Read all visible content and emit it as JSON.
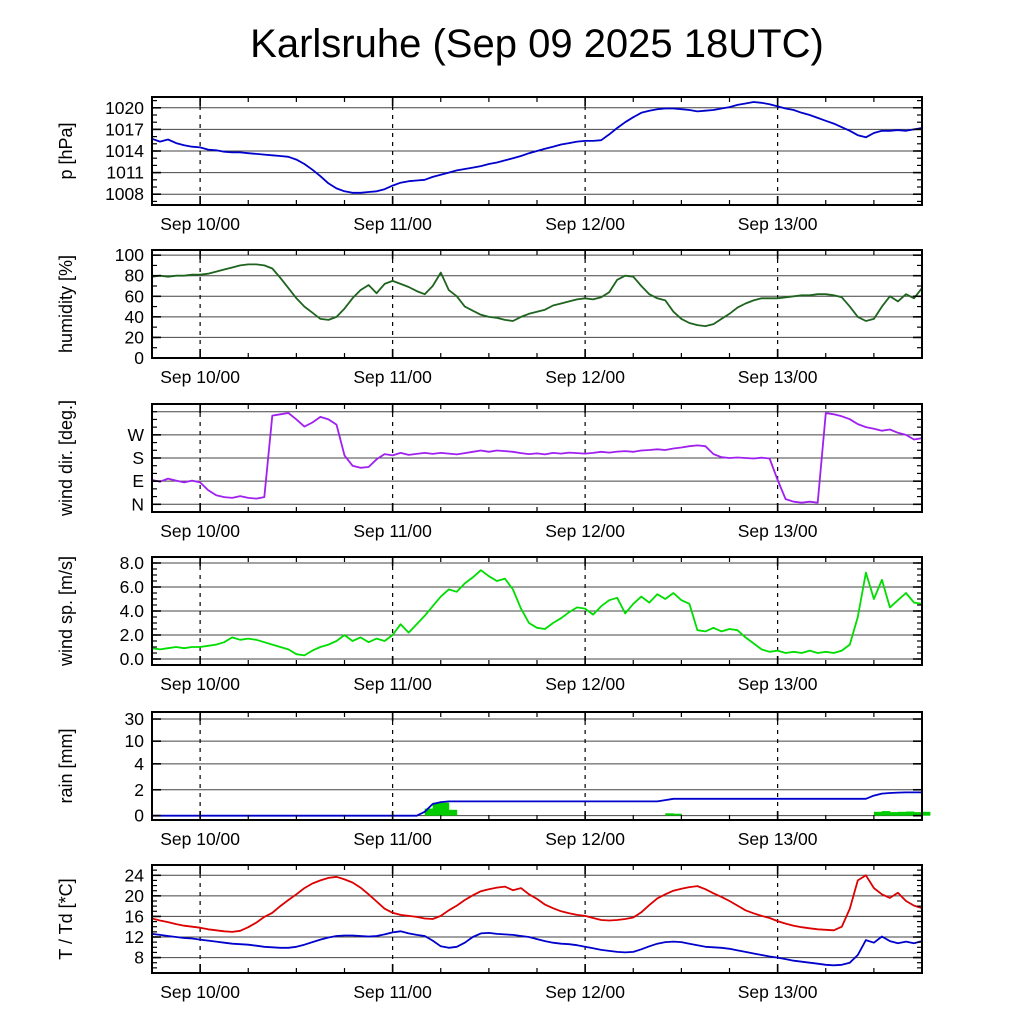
{
  "title": "Karlsruhe (Sep 09 2025 18UTC)",
  "x_axis": {
    "hours_total": 96,
    "step_hours": 1,
    "minor_tick_step_hours": 6,
    "ticks": [
      {
        "hour": 6,
        "label": "Sep 10/00"
      },
      {
        "hour": 30,
        "label": "Sep 11/00"
      },
      {
        "hour": 54,
        "label": "Sep 12/00"
      },
      {
        "hour": 78,
        "label": "Sep 13/00"
      }
    ]
  },
  "colors": {
    "pressure": "#0000cd",
    "humidity": "#1e641e",
    "wind_dir": "#a020f0",
    "wind_speed": "#00dd00",
    "rain_line": "#0000cd",
    "rain_bar": "#00cc00",
    "temperature": "#dd0000",
    "dewpoint": "#0000cd",
    "gridline": "#444444",
    "axis": "#000000"
  },
  "chart_data": [
    {
      "id": "pressure",
      "type": "line",
      "ylabel": "p [hPa]",
      "ytick_values": [
        1008,
        1011,
        1014,
        1017,
        1020
      ],
      "ytick_labels": [
        "1008",
        "1011",
        "1014",
        "1017",
        "1020"
      ],
      "ydomain": [
        1006.5,
        1021.5
      ],
      "minor_step": 1,
      "series": [
        {
          "name": "pressure",
          "color": "pressure",
          "values": [
            1015.7,
            1015.3,
            1015.6,
            1015.1,
            1014.8,
            1014.6,
            1014.5,
            1014.2,
            1014.1,
            1013.9,
            1013.8,
            1013.8,
            1013.7,
            1013.6,
            1013.5,
            1013.4,
            1013.3,
            1013.2,
            1012.8,
            1012.2,
            1011.4,
            1010.5,
            1009.5,
            1008.8,
            1008.4,
            1008.2,
            1008.2,
            1008.3,
            1008.4,
            1008.7,
            1009.2,
            1009.6,
            1009.8,
            1009.9,
            1010.0,
            1010.4,
            1010.7,
            1011.0,
            1011.3,
            1011.5,
            1011.7,
            1011.9,
            1012.2,
            1012.4,
            1012.7,
            1013.0,
            1013.3,
            1013.7,
            1014.0,
            1014.3,
            1014.6,
            1014.9,
            1015.1,
            1015.3,
            1015.4,
            1015.4,
            1015.5,
            1016.3,
            1017.2,
            1018.0,
            1018.7,
            1019.3,
            1019.6,
            1019.8,
            1019.9,
            1019.9,
            1019.8,
            1019.7,
            1019.5,
            1019.6,
            1019.7,
            1019.9,
            1020.1,
            1020.4,
            1020.6,
            1020.8,
            1020.7,
            1020.5,
            1020.2,
            1019.9,
            1019.7,
            1019.3,
            1019.0,
            1018.6,
            1018.2,
            1017.8,
            1017.3,
            1016.8,
            1016.2,
            1015.9,
            1016.5,
            1016.8,
            1016.8,
            1016.9,
            1016.8,
            1017.0,
            1017.2
          ]
        }
      ]
    },
    {
      "id": "humidity",
      "type": "line",
      "ylabel": "humidity [%]",
      "ytick_values": [
        0,
        20,
        40,
        60,
        80,
        100
      ],
      "ytick_labels": [
        "0",
        "20",
        "40",
        "60",
        "80",
        "100"
      ],
      "ydomain": [
        0,
        105
      ],
      "minor_step": 10,
      "series": [
        {
          "name": "humidity",
          "color": "humidity",
          "values": [
            79,
            80,
            79,
            80,
            80,
            81,
            81,
            82,
            84,
            86,
            88,
            90,
            91,
            91,
            90,
            87,
            78,
            68,
            58,
            50,
            44,
            38,
            37,
            40,
            48,
            58,
            66,
            71,
            63,
            72,
            75,
            72,
            69,
            65,
            62,
            70,
            83,
            66,
            60,
            50,
            46,
            42,
            40,
            39,
            37,
            36,
            40,
            43,
            45,
            47,
            51,
            53,
            55,
            57,
            58,
            57,
            59,
            64,
            76,
            80,
            79,
            70,
            62,
            58,
            56,
            45,
            38,
            34,
            32,
            31,
            33,
            38,
            43,
            49,
            53,
            56,
            58,
            58,
            58,
            59,
            60,
            61,
            61,
            62,
            62,
            61,
            59,
            50,
            40,
            36,
            38,
            50,
            60,
            55,
            62,
            58,
            68
          ]
        }
      ]
    },
    {
      "id": "wind-direction",
      "type": "line",
      "ylabel": "wind dir. [deg.]",
      "ytick_values": [
        0,
        90,
        180,
        270
      ],
      "ytick_labels": [
        "N",
        "E",
        "S",
        "W"
      ],
      "extra_gridlines": [
        360
      ],
      "ydomain": [
        -30,
        390
      ],
      "minor_step": 30,
      "series": [
        {
          "name": "wind-direction",
          "color": "wind_dir",
          "values": [
            95,
            88,
            100,
            92,
            85,
            92,
            85,
            55,
            35,
            28,
            25,
            32,
            25,
            22,
            28,
            345,
            350,
            355,
            330,
            302,
            318,
            340,
            330,
            310,
            190,
            150,
            142,
            145,
            175,
            195,
            190,
            200,
            192,
            196,
            200,
            196,
            200,
            197,
            194,
            199,
            204,
            209,
            204,
            209,
            207,
            204,
            199,
            195,
            198,
            194,
            200,
            197,
            201,
            199,
            197,
            200,
            204,
            201,
            205,
            207,
            204,
            209,
            211,
            214,
            211,
            217,
            221,
            226,
            229,
            226,
            195,
            183,
            180,
            182,
            180,
            178,
            181,
            178,
            95,
            20,
            10,
            6,
            10,
            6,
            355,
            350,
            342,
            331,
            312,
            300,
            294,
            286,
            291,
            278,
            270,
            252,
            257
          ]
        }
      ]
    },
    {
      "id": "wind-speed",
      "type": "line",
      "ylabel": "wind sp. [m/s]",
      "ytick_values": [
        0,
        2,
        4,
        6,
        8
      ],
      "ytick_labels": [
        "0.0",
        "2.0",
        "4.0",
        "6.0",
        "8.0"
      ],
      "ydomain": [
        -0.5,
        8.5
      ],
      "minor_step": 0.5,
      "series": [
        {
          "name": "wind-speed",
          "color": "wind_speed",
          "values": [
            0.9,
            0.8,
            0.9,
            1.0,
            0.9,
            1.0,
            1.0,
            1.1,
            1.2,
            1.4,
            1.8,
            1.6,
            1.7,
            1.6,
            1.4,
            1.2,
            1.0,
            0.8,
            0.4,
            0.3,
            0.7,
            1.0,
            1.2,
            1.5,
            2.0,
            1.5,
            1.8,
            1.4,
            1.7,
            1.5,
            2.0,
            2.9,
            2.2,
            2.9,
            3.6,
            4.4,
            5.2,
            5.8,
            5.6,
            6.3,
            6.8,
            7.4,
            6.9,
            6.5,
            6.7,
            5.8,
            4.2,
            3.0,
            2.6,
            2.5,
            3.0,
            3.4,
            3.9,
            4.3,
            4.2,
            3.7,
            4.4,
            4.9,
            5.1,
            3.8,
            4.6,
            5.2,
            4.7,
            5.4,
            5.0,
            5.5,
            4.9,
            4.6,
            2.4,
            2.3,
            2.6,
            2.3,
            2.5,
            2.4,
            1.8,
            1.3,
            0.8,
            0.6,
            0.7,
            0.5,
            0.6,
            0.5,
            0.7,
            0.5,
            0.6,
            0.5,
            0.7,
            1.2,
            3.5,
            7.2,
            5.0,
            6.6,
            4.3,
            4.9,
            5.5,
            4.7,
            4.6
          ]
        }
      ]
    },
    {
      "id": "rain",
      "type": "line+bar",
      "ylabel": "rain [mm]",
      "ytick_values": [
        0,
        2,
        4,
        10,
        30
      ],
      "ytick_labels": [
        "0",
        "2",
        "4",
        "10",
        "30"
      ],
      "scale": "rain",
      "scale_anchors": [
        [
          0,
          0.04
        ],
        [
          2,
          0.28
        ],
        [
          4,
          0.52
        ],
        [
          10,
          0.73
        ],
        [
          30,
          0.935
        ],
        [
          100,
          1.0
        ]
      ],
      "bars": {
        "name": "rain-rate",
        "color": "rain_bar",
        "values": [
          0,
          0,
          0,
          0,
          0,
          0,
          0,
          0,
          0,
          0,
          0,
          0,
          0,
          0,
          0,
          0,
          0,
          0,
          0,
          0,
          0,
          0,
          0,
          0,
          0,
          0,
          0,
          0,
          0,
          0,
          0,
          0,
          0,
          0,
          0.55,
          1.0,
          1.0,
          0.45,
          0,
          0,
          0,
          0,
          0,
          0,
          0,
          0,
          0,
          0,
          0,
          0,
          0,
          0,
          0,
          0,
          0,
          0,
          0,
          0,
          0,
          0,
          0,
          0,
          0,
          0,
          0.18,
          0.15,
          0,
          0,
          0,
          0,
          0,
          0,
          0,
          0,
          0,
          0,
          0,
          0,
          0,
          0,
          0,
          0,
          0,
          0,
          0,
          0,
          0,
          0,
          0,
          0,
          0.3,
          0.35,
          0.28,
          0.3,
          0.32,
          0.28,
          0.3
        ]
      },
      "series": [
        {
          "name": "rain-accumulated",
          "color": "rain_line",
          "values": [
            0,
            0,
            0,
            0,
            0,
            0,
            0,
            0,
            0,
            0,
            0,
            0,
            0,
            0,
            0,
            0,
            0,
            0,
            0,
            0,
            0,
            0,
            0,
            0,
            0,
            0,
            0,
            0,
            0,
            0,
            0,
            0,
            0,
            0,
            0.3,
            0.9,
            1.05,
            1.1,
            1.1,
            1.1,
            1.1,
            1.1,
            1.1,
            1.1,
            1.1,
            1.1,
            1.1,
            1.1,
            1.1,
            1.1,
            1.1,
            1.1,
            1.1,
            1.1,
            1.1,
            1.1,
            1.1,
            1.1,
            1.1,
            1.1,
            1.1,
            1.1,
            1.1,
            1.1,
            1.2,
            1.3,
            1.3,
            1.3,
            1.3,
            1.3,
            1.3,
            1.3,
            1.3,
            1.3,
            1.3,
            1.3,
            1.3,
            1.3,
            1.3,
            1.3,
            1.3,
            1.3,
            1.3,
            1.3,
            1.3,
            1.3,
            1.3,
            1.3,
            1.3,
            1.3,
            1.55,
            1.7,
            1.75,
            1.78,
            1.8,
            1.8,
            1.8
          ]
        }
      ]
    },
    {
      "id": "temperature",
      "type": "line",
      "ylabel": "T / Td [*C]",
      "ytick_values": [
        8,
        12,
        16,
        20,
        24
      ],
      "ytick_labels": [
        "8",
        "12",
        "16",
        "20",
        "24"
      ],
      "ydomain": [
        5,
        26
      ],
      "minor_step": 1,
      "series": [
        {
          "name": "temperature",
          "color": "temperature",
          "values": [
            15.6,
            15.2,
            14.9,
            14.5,
            14.2,
            14.0,
            13.8,
            13.5,
            13.3,
            13.1,
            13.0,
            13.2,
            13.9,
            14.8,
            15.9,
            16.7,
            18.0,
            19.2,
            20.3,
            21.5,
            22.4,
            23.0,
            23.5,
            23.7,
            23.2,
            22.6,
            21.6,
            20.3,
            18.9,
            17.5,
            16.7,
            16.3,
            16.1,
            15.9,
            15.6,
            15.5,
            16.1,
            17.2,
            18.1,
            19.2,
            20.1,
            20.9,
            21.3,
            21.6,
            21.8,
            21.1,
            21.5,
            20.3,
            19.4,
            18.3,
            17.6,
            17.0,
            16.6,
            16.3,
            16.1,
            15.7,
            15.3,
            15.2,
            15.3,
            15.5,
            15.8,
            16.8,
            18.2,
            19.5,
            20.3,
            21.0,
            21.4,
            21.7,
            21.9,
            21.3,
            20.5,
            19.8,
            19.0,
            18.1,
            17.2,
            16.6,
            16.1,
            15.7,
            15.1,
            14.6,
            14.2,
            13.9,
            13.7,
            13.5,
            13.4,
            13.3,
            14.0,
            17.5,
            23.0,
            24.0,
            21.5,
            20.3,
            19.6,
            20.6,
            19.0,
            18.1,
            17.6
          ]
        },
        {
          "name": "dewpoint",
          "color": "dewpoint",
          "values": [
            12.6,
            12.4,
            12.2,
            12.0,
            11.8,
            11.7,
            11.5,
            11.3,
            11.1,
            10.9,
            10.7,
            10.6,
            10.5,
            10.3,
            10.1,
            10.0,
            9.9,
            9.9,
            10.1,
            10.5,
            11.0,
            11.5,
            11.9,
            12.2,
            12.3,
            12.3,
            12.2,
            12.1,
            12.2,
            12.5,
            12.9,
            13.1,
            12.7,
            12.4,
            12.2,
            11.3,
            10.2,
            9.9,
            10.1,
            10.9,
            12.0,
            12.7,
            12.8,
            12.6,
            12.5,
            12.4,
            12.2,
            12.0,
            11.6,
            11.2,
            10.9,
            10.7,
            10.6,
            10.4,
            10.1,
            9.8,
            9.5,
            9.3,
            9.1,
            9.0,
            9.1,
            9.6,
            10.2,
            10.7,
            11.0,
            11.1,
            11.0,
            10.7,
            10.4,
            10.1,
            10.0,
            9.9,
            9.7,
            9.4,
            9.1,
            8.8,
            8.5,
            8.2,
            8.0,
            7.7,
            7.4,
            7.2,
            7.0,
            6.8,
            6.6,
            6.5,
            6.6,
            7.0,
            8.5,
            11.4,
            10.9,
            12.1,
            11.2,
            10.8,
            11.1,
            10.8,
            11.2
          ]
        }
      ]
    }
  ]
}
